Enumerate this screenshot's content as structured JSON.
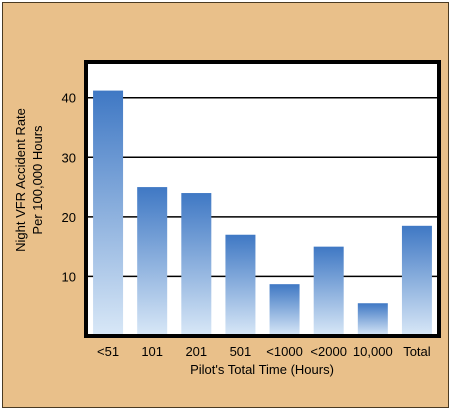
{
  "chart_data": {
    "type": "bar",
    "title": "",
    "xlabel": "Pilot's Total Time (Hours)",
    "ylabel_line1": "Night VFR Accident Rate",
    "ylabel_line2": "Per 100,000 Hours",
    "categories": [
      "<51",
      "101",
      "201",
      "501",
      "<1000",
      "<2000",
      "10,000",
      "Total"
    ],
    "values": [
      41.2,
      25.0,
      24.0,
      17.0,
      8.7,
      15.0,
      5.5,
      18.5
    ],
    "ylim": [
      0,
      46
    ],
    "yticks": [
      10,
      20,
      30,
      40
    ],
    "grid": true,
    "colors": {
      "background": "#e9c08a",
      "plot_bg": "#ffffff",
      "bar_top": "#3f78c4",
      "bar_bottom": "#d9e8f7",
      "grid": "#000000"
    }
  }
}
